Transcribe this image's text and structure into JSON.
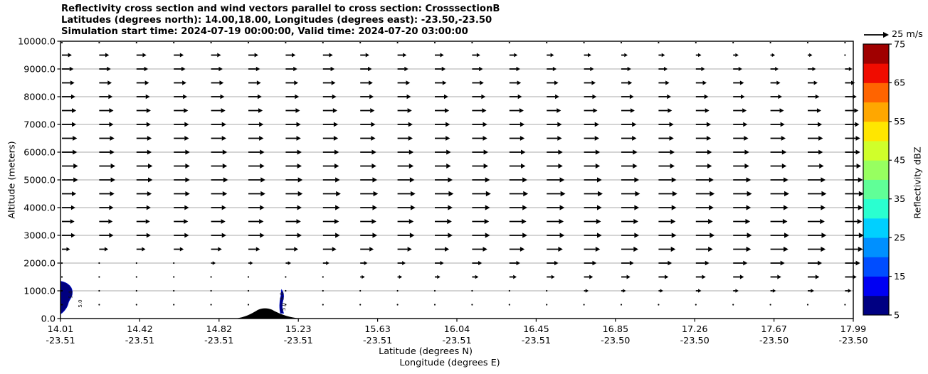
{
  "title": {
    "line1": "Reflectivity cross section and wind vectors parallel to cross section: CrosssectionB",
    "line2": "Latitudes (degrees north): 14.00,18.00, Longitudes (degrees east): -23.50,-23.50",
    "line3": "Simulation start time: 2024-07-19 00:00:00, Valid time: 2024-07-20 03:00:00"
  },
  "chart_data": {
    "type": "quiver-cross-section",
    "title": "Reflectivity cross section and wind vectors parallel to cross section: CrosssectionB",
    "subtitle": "Latitudes (degrees north): 14.00,18.00, Longitudes (degrees east): -23.50,-23.50",
    "subtitle2": "Simulation start time: 2024-07-19 00:00:00, Valid time: 2024-07-20 03:00:00",
    "ylabel": "Altitude (meters)",
    "xlabel_line1": "Latitude (degrees N)",
    "xlabel_line2": "Longitude (degrees E)",
    "ylim": [
      0,
      10000
    ],
    "yticks": [
      "0.0",
      "1000.0",
      "2000.0",
      "3000.0",
      "4000.0",
      "5000.0",
      "6000.0",
      "7000.0",
      "8000.0",
      "9000.0",
      "10000.0"
    ],
    "xticks": {
      "lat": [
        "14.01",
        "14.42",
        "14.82",
        "15.23",
        "15.63",
        "16.04",
        "16.45",
        "16.85",
        "17.26",
        "17.67",
        "17.99"
      ],
      "lon": [
        "-23.51",
        "-23.51",
        "-23.51",
        "-23.51",
        "-23.51",
        "-23.51",
        "-23.51",
        "-23.50",
        "-23.50",
        "-23.50",
        "-23.50"
      ]
    },
    "grid": {
      "orientation": "horizontal",
      "interval_m": 1000,
      "color": "#aaaaaa"
    },
    "quiver_key": {
      "label": "25 m/s",
      "speed_ms": 25
    },
    "colorbar": {
      "label": "Reflectivity dBZ",
      "min": 5,
      "max": 75,
      "band_step_dbz": 5,
      "ticks": [
        "5",
        "15",
        "25",
        "35",
        "45",
        "55",
        "65",
        "75"
      ],
      "band_colors_bottom_to_top": [
        "#000082",
        "#0000f3",
        "#004dff",
        "#0090ff",
        "#00d0ff",
        "#2affd0",
        "#60ff97",
        "#97ff60",
        "#d0ff2a",
        "#ffe600",
        "#ffa700",
        "#ff6400",
        "#f00c00",
        "#a00000"
      ]
    },
    "wind_field": {
      "units": "m/s",
      "direction": "parallel to cross section, left-to-right",
      "altitudes_m": [
        9950,
        9500,
        9000,
        8500,
        8000,
        7500,
        7000,
        6500,
        6000,
        5500,
        5000,
        4500,
        4000,
        3500,
        3000,
        2500,
        2000,
        1500,
        1000,
        500
      ],
      "speeds_by_row": [
        [
          1,
          1,
          1,
          1,
          1,
          1,
          1,
          1,
          1,
          1,
          1,
          1,
          1,
          1,
          1,
          1,
          1,
          1,
          1,
          1,
          1,
          1
        ],
        [
          8,
          8,
          8,
          8,
          8,
          8,
          8,
          8,
          7,
          7,
          7,
          6,
          6,
          5,
          5,
          4,
          4,
          3,
          3,
          2,
          2,
          1
        ],
        [
          10,
          10,
          10,
          10,
          10,
          10,
          10,
          10,
          10,
          9,
          9,
          9,
          9,
          8,
          8,
          8,
          7,
          7,
          7,
          6,
          6,
          5
        ],
        [
          11,
          11,
          11,
          11,
          11,
          11,
          11,
          11,
          11,
          11,
          10,
          10,
          10,
          10,
          10,
          9,
          9,
          9,
          9,
          8,
          8,
          8
        ],
        [
          12,
          12,
          12,
          12,
          12,
          12,
          12,
          12,
          12,
          12,
          12,
          12,
          11,
          11,
          11,
          11,
          11,
          11,
          10,
          10,
          10,
          10
        ],
        [
          13,
          13,
          13,
          13,
          13,
          13,
          13,
          13,
          13,
          13,
          13,
          13,
          13,
          13,
          12,
          12,
          12,
          12,
          12,
          12,
          12,
          12
        ],
        [
          13,
          13,
          13,
          14,
          14,
          14,
          14,
          14,
          14,
          14,
          14,
          14,
          14,
          14,
          14,
          14,
          14,
          14,
          13,
          13,
          13,
          13
        ],
        [
          14,
          14,
          14,
          14,
          14,
          14,
          14,
          14,
          14,
          14,
          14,
          14,
          14,
          14,
          14,
          14,
          14,
          14,
          14,
          14,
          14,
          14
        ],
        [
          14,
          14,
          14,
          15,
          15,
          15,
          15,
          15,
          15,
          15,
          15,
          15,
          15,
          15,
          15,
          15,
          15,
          15,
          15,
          15,
          14,
          14
        ],
        [
          15,
          15,
          15,
          15,
          15,
          15,
          15,
          15,
          15,
          15,
          15,
          15,
          15,
          15,
          15,
          15,
          15,
          15,
          15,
          15,
          15,
          15
        ],
        [
          15,
          15,
          15,
          15,
          16,
          16,
          16,
          16,
          16,
          16,
          17,
          17,
          17,
          17,
          17,
          17,
          17,
          17,
          17,
          17,
          17,
          17
        ],
        [
          13,
          14,
          14,
          15,
          15,
          16,
          16,
          17,
          17,
          17,
          18,
          18,
          18,
          18,
          18,
          18,
          18,
          18,
          18,
          18,
          18,
          18
        ],
        [
          12,
          13,
          13,
          14,
          14,
          15,
          15,
          16,
          16,
          17,
          17,
          17,
          17,
          17,
          17,
          17,
          17,
          17,
          17,
          17,
          17,
          17
        ],
        [
          11,
          12,
          12,
          13,
          13,
          14,
          14,
          15,
          15,
          15,
          16,
          16,
          16,
          16,
          16,
          16,
          16,
          16,
          16,
          16,
          16,
          16
        ],
        [
          12,
          13,
          13,
          14,
          14,
          15,
          15,
          16,
          16,
          16,
          17,
          17,
          17,
          17,
          17,
          17,
          17,
          18,
          18,
          18,
          18,
          18
        ],
        [
          6,
          7,
          7,
          8,
          9,
          10,
          11,
          12,
          12,
          13,
          13,
          14,
          14,
          15,
          15,
          16,
          16,
          16,
          17,
          17,
          17,
          17
        ],
        [
          1,
          1,
          1,
          1,
          2,
          2,
          3,
          4,
          5,
          6,
          7,
          8,
          9,
          10,
          11,
          11,
          12,
          12,
          13,
          13,
          13,
          14
        ],
        [
          1,
          1,
          1,
          1,
          1,
          1,
          1,
          1,
          2,
          2,
          3,
          4,
          5,
          6,
          7,
          7,
          8,
          8,
          9,
          9,
          10,
          10
        ],
        [
          1,
          1,
          1,
          1,
          1,
          1,
          1,
          1,
          1,
          1,
          1,
          1,
          1,
          1,
          2,
          2,
          2,
          3,
          3,
          3,
          4,
          4
        ],
        [
          1,
          1,
          1,
          1,
          1,
          1,
          1,
          1,
          1,
          1,
          1,
          1,
          1,
          1,
          1,
          1,
          1,
          1,
          1,
          1,
          1,
          1
        ]
      ]
    },
    "reflectivity_features": [
      {
        "name": "left-edge-cell",
        "contour_value_dbz": 5.0,
        "contour_labels": [
          "5.0",
          "5.0"
        ],
        "fill": "#000080",
        "approx_lat": 14.03,
        "approx_alt_range_m": [
          150,
          1350
        ]
      },
      {
        "name": "mid-cell",
        "contour_value_dbz": 5.0,
        "contour_labels": [
          "5.0",
          "5.0"
        ],
        "fill": "#000080",
        "approx_lat": 15.12,
        "approx_alt_range_m": [
          180,
          1030
        ]
      }
    ],
    "terrain": {
      "color": "#000000",
      "approx_lat_range": [
        14.89,
        15.22
      ],
      "peak_alt_m": 400
    }
  }
}
